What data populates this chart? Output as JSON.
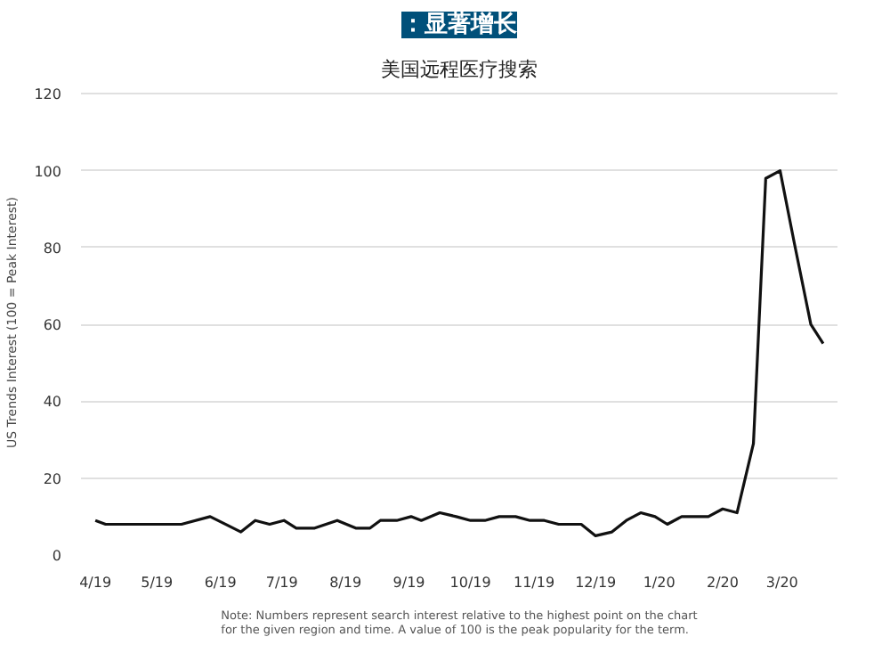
{
  "chart_data": {
    "type": "line",
    "subtitle": "：显著增长",
    "title": "美国远程医疗搜索",
    "ylabel": "US Trends Interest (100 = Peak Interest)",
    "x": [
      "2019-04-01",
      "2019-04-06",
      "2019-05-13",
      "2019-05-27",
      "2019-06-11",
      "2019-06-18",
      "2019-06-25",
      "2019-07-02",
      "2019-07-08",
      "2019-07-17",
      "2019-07-28",
      "2019-08-06",
      "2019-08-13",
      "2019-08-18",
      "2019-08-26",
      "2019-09-02",
      "2019-09-07",
      "2019-09-16",
      "2019-09-24",
      "2019-10-01",
      "2019-10-08",
      "2019-10-15",
      "2019-10-23",
      "2019-10-30",
      "2019-11-06",
      "2019-11-13",
      "2019-11-24",
      "2019-12-01",
      "2019-12-09",
      "2019-12-16",
      "2019-12-23",
      "2019-12-30",
      "2020-01-05",
      "2020-01-12",
      "2020-01-25",
      "2020-02-01",
      "2020-02-08",
      "2020-02-16",
      "2020-02-22",
      "2020-02-29",
      "2020-03-07",
      "2020-03-15",
      "2020-03-21"
    ],
    "series": [
      {
        "color": "#111111",
        "values": [
          9,
          8,
          8,
          10,
          6,
          9,
          8,
          9,
          7,
          7,
          9,
          7,
          7,
          9,
          9,
          10,
          9,
          11,
          10,
          9,
          9,
          10,
          10,
          9,
          9,
          8,
          8,
          5,
          6,
          9,
          11,
          10,
          8,
          10,
          10,
          12,
          11,
          29,
          98,
          100,
          81,
          60,
          55
        ]
      }
    ],
    "xlim": [
      "2019-03-25",
      "2020-03-28"
    ],
    "xticks": [
      {
        "value": "2019-04-01",
        "label": "4/19"
      },
      {
        "value": "2019-05-01",
        "label": "5/19"
      },
      {
        "value": "2019-06-01",
        "label": "6/19"
      },
      {
        "value": "2019-07-01",
        "label": "7/19"
      },
      {
        "value": "2019-08-01",
        "label": "8/19"
      },
      {
        "value": "2019-09-01",
        "label": "9/19"
      },
      {
        "value": "2019-10-01",
        "label": "10/19"
      },
      {
        "value": "2019-11-01",
        "label": "11/19"
      },
      {
        "value": "2019-12-01",
        "label": "12/19"
      },
      {
        "value": "2020-01-01",
        "label": "1/20"
      },
      {
        "value": "2020-02-01",
        "label": "2/20"
      },
      {
        "value": "2020-03-01",
        "label": "3/20"
      }
    ],
    "ylim": [
      0,
      121
    ],
    "yticks": [
      0,
      20,
      40,
      60,
      80,
      100,
      120
    ],
    "grid": "y",
    "marker": "none",
    "line_style": "solid",
    "annotations": [
      "Note: Numbers represent search interest relative to the highest point on the chart for the given region and time. A value of 100 is the peak popularity for the term."
    ]
  }
}
